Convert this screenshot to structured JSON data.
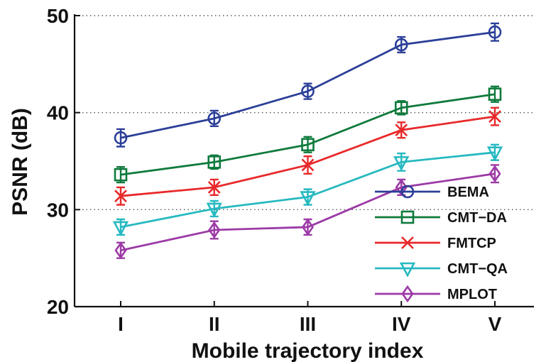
{
  "chart_data": {
    "type": "line",
    "xlabel": "Mobile trajectory index",
    "ylabel": "PSNR (dB)",
    "categories": [
      "I",
      "II",
      "III",
      "IV",
      "V"
    ],
    "ylim": [
      20,
      50
    ],
    "yticks": [
      "20",
      "30",
      "40",
      "50"
    ],
    "grid": "horizontal dotted",
    "legend_position": "bottom-right",
    "series": [
      {
        "name": "BEMA",
        "color": "#2b3f98",
        "marker": "circle",
        "values": [
          37.4,
          39.4,
          42.2,
          47.0,
          48.3
        ],
        "error": [
          0.9,
          0.8,
          0.8,
          0.8,
          0.9
        ]
      },
      {
        "name": "CMT−DA",
        "color": "#0f7a3c",
        "marker": "square",
        "values": [
          33.6,
          34.9,
          36.7,
          40.5,
          41.9
        ],
        "error": [
          0.8,
          0.7,
          0.8,
          0.7,
          0.8
        ]
      },
      {
        "name": "FMTCP",
        "color": "#e8292a",
        "marker": "x",
        "values": [
          31.4,
          32.3,
          34.6,
          38.2,
          39.6
        ],
        "error": [
          0.9,
          0.8,
          0.9,
          0.8,
          0.9
        ]
      },
      {
        "name": "CMT−QA",
        "color": "#26b9c0",
        "marker": "triangle-down",
        "values": [
          28.2,
          30.1,
          31.3,
          34.9,
          35.9
        ],
        "error": [
          0.8,
          0.8,
          0.8,
          0.9,
          0.8
        ]
      },
      {
        "name": "MPLOT",
        "color": "#9c3aa6",
        "marker": "diamond",
        "values": [
          25.8,
          27.9,
          28.2,
          32.3,
          33.7
        ],
        "error": [
          0.8,
          0.9,
          0.8,
          0.8,
          0.9
        ]
      }
    ]
  }
}
